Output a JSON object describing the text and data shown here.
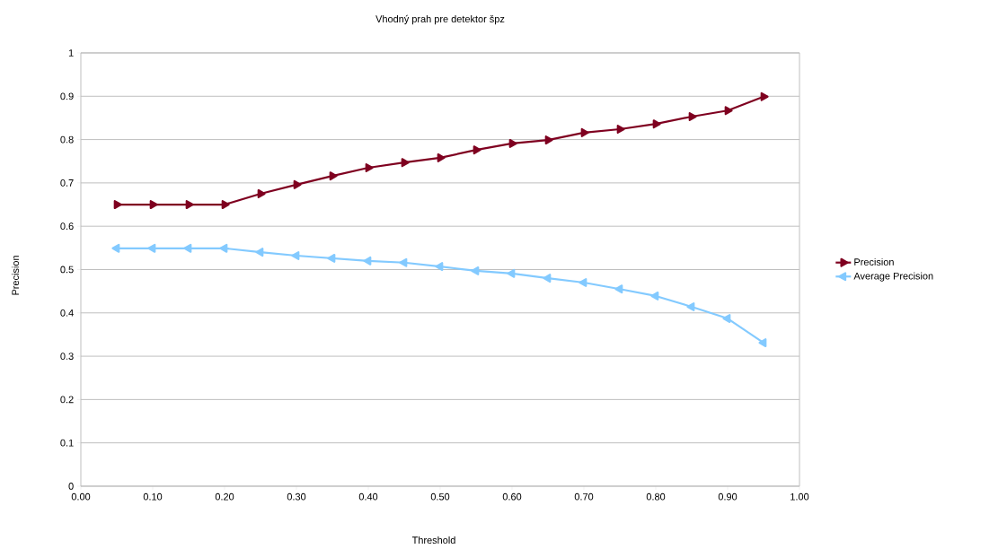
{
  "chart_data": {
    "type": "line",
    "title": "Vhodný prah pre detektor špz",
    "xlabel": "Threshold",
    "ylabel": "Precision",
    "x": [
      0.05,
      0.1,
      0.15,
      0.2,
      0.25,
      0.3,
      0.35,
      0.4,
      0.45,
      0.5,
      0.55,
      0.6,
      0.65,
      0.7,
      0.75,
      0.8,
      0.85,
      0.9,
      0.95
    ],
    "series": [
      {
        "name": "Precision",
        "color": "#7f0020",
        "values": [
          0.65,
          0.65,
          0.65,
          0.65,
          0.675,
          0.696,
          0.716,
          0.735,
          0.747,
          0.758,
          0.776,
          0.791,
          0.799,
          0.816,
          0.824,
          0.836,
          0.853,
          0.867,
          0.899
        ]
      },
      {
        "name": "Average Precision",
        "color": "#83caff",
        "values": [
          0.549,
          0.549,
          0.549,
          0.549,
          0.54,
          0.532,
          0.526,
          0.52,
          0.516,
          0.507,
          0.497,
          0.491,
          0.48,
          0.47,
          0.455,
          0.439,
          0.414,
          0.387,
          0.331
        ]
      }
    ],
    "xlim": [
      0,
      1
    ],
    "xticks": [
      {
        "value": 0,
        "label": "0.00"
      },
      {
        "value": 0.1,
        "label": "0.10"
      },
      {
        "value": 0.2,
        "label": "0.20"
      },
      {
        "value": 0.3,
        "label": "0.30"
      },
      {
        "value": 0.4,
        "label": "0.40"
      },
      {
        "value": 0.5,
        "label": "0.50"
      },
      {
        "value": 0.6,
        "label": "0.60"
      },
      {
        "value": 0.7,
        "label": "0.70"
      },
      {
        "value": 0.8,
        "label": "0.80"
      },
      {
        "value": 0.9,
        "label": "0.90"
      },
      {
        "value": 1,
        "label": "1.00"
      }
    ],
    "ylim": [
      0,
      1
    ],
    "yticks": [
      0,
      0.1,
      0.2,
      0.3,
      0.4,
      0.5,
      0.6,
      0.7,
      0.8,
      0.9,
      1
    ],
    "grid": "y",
    "legend": "right",
    "marker": "triangle",
    "line_style": "solid"
  }
}
